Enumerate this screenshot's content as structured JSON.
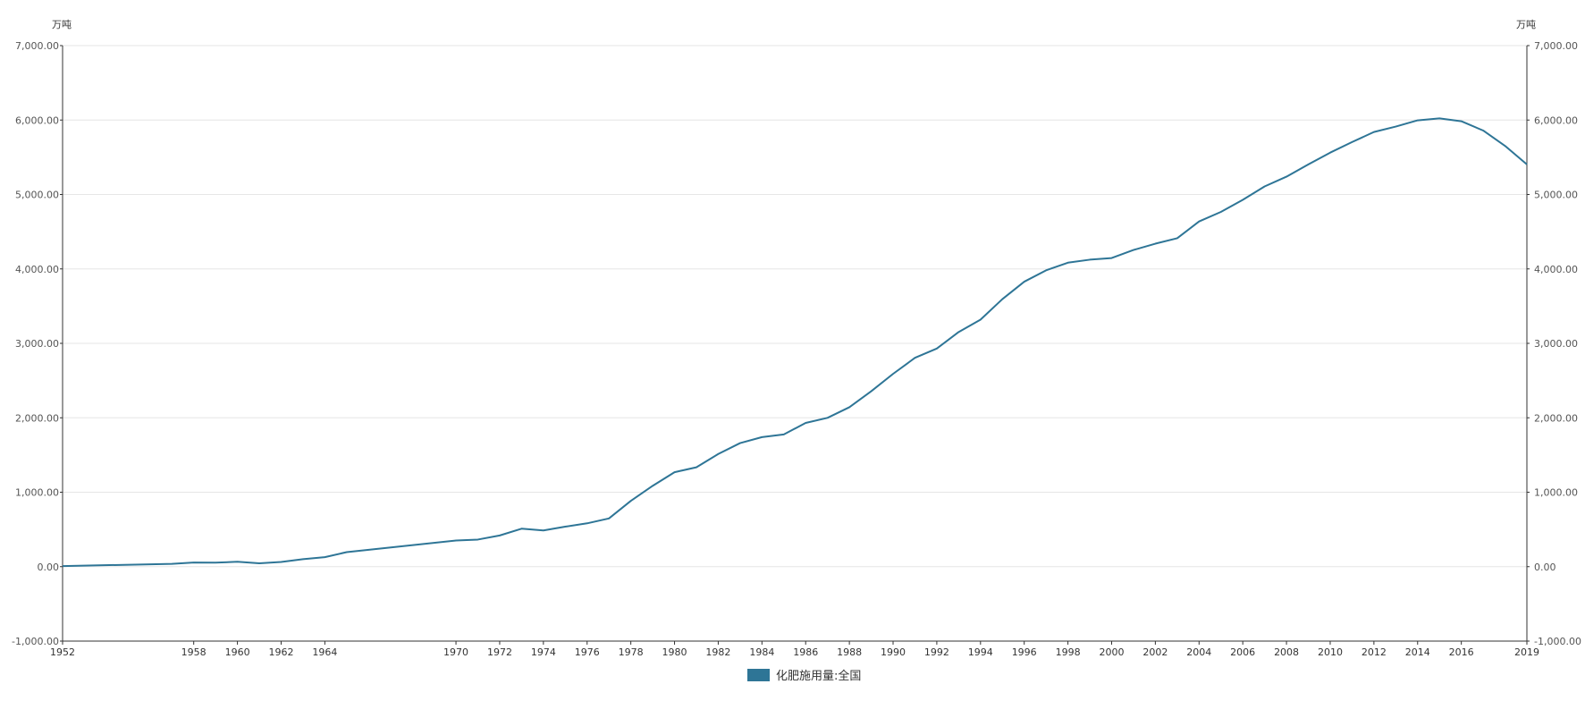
{
  "chart_data": {
    "type": "line",
    "y_unit_left": "万吨",
    "y_unit_right": "万吨",
    "ylim": [
      -1000,
      7000
    ],
    "y_ticks": [
      -1000,
      0,
      1000,
      2000,
      3000,
      4000,
      5000,
      6000,
      7000
    ],
    "y_tick_labels": [
      "-1,000.00",
      "0.00",
      "1,000.00",
      "2,000.00",
      "3,000.00",
      "4,000.00",
      "5,000.00",
      "6,000.00",
      "7,000.00"
    ],
    "x_tick_labels": [
      "1952",
      "1958",
      "1960",
      "1962",
      "1964",
      "1970",
      "1972",
      "1974",
      "1976",
      "1978",
      "1980",
      "1982",
      "1984",
      "1986",
      "1988",
      "1990",
      "1992",
      "1994",
      "1996",
      "1998",
      "2000",
      "2002",
      "2004",
      "2006",
      "2008",
      "2010",
      "2012",
      "2014",
      "2016",
      "2019"
    ],
    "grid": true,
    "legend_position": "bottom-center",
    "series": [
      {
        "name": "化肥施用量:全国",
        "color": "#2e7596",
        "x": [
          "1952",
          "1957",
          "1958",
          "1959",
          "1960",
          "1961",
          "1962",
          "1963",
          "1964",
          "1965",
          "1970",
          "1971",
          "1972",
          "1973",
          "1974",
          "1975",
          "1976",
          "1977",
          "1978",
          "1979",
          "1980",
          "1981",
          "1982",
          "1983",
          "1984",
          "1985",
          "1986",
          "1987",
          "1988",
          "1989",
          "1990",
          "1991",
          "1992",
          "1993",
          "1994",
          "1995",
          "1996",
          "1997",
          "1998",
          "1999",
          "2000",
          "2001",
          "2002",
          "2003",
          "2004",
          "2005",
          "2006",
          "2007",
          "2008",
          "2009",
          "2010",
          "2011",
          "2012",
          "2013",
          "2014",
          "2015",
          "2016",
          "2017",
          "2018",
          "2019"
        ],
        "values": [
          8,
          37,
          55,
          54,
          66,
          45,
          63,
          100,
          128,
          195,
          351,
          364,
          419,
          510,
          486,
          537,
          582,
          648,
          884,
          1086,
          1269,
          1335,
          1513,
          1660,
          1740,
          1776,
          1931,
          1999,
          2142,
          2357,
          2590,
          2805,
          2930,
          3152,
          3318,
          3594,
          3828,
          3981,
          4084,
          4124,
          4146,
          4254,
          4339,
          4412,
          4637,
          4766,
          4928,
          5108,
          5239,
          5404,
          5562,
          5704,
          5839,
          5912,
          5996,
          6023,
          5984,
          5859,
          5653,
          5404
        ]
      }
    ]
  }
}
